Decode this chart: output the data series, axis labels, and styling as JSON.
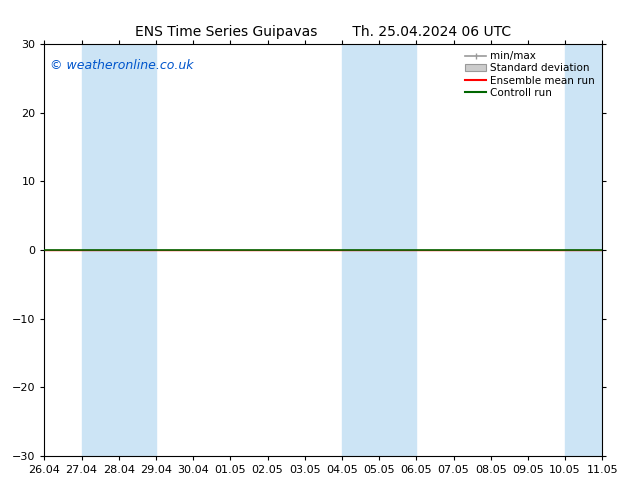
{
  "title": "ENS Time Series Guipavas",
  "title2": "Th. 25.04.2024 06 UTC",
  "watermark": "© weatheronline.co.uk",
  "watermark_color": "#0055cc",
  "ylim": [
    -30,
    30
  ],
  "yticks": [
    -30,
    -20,
    -10,
    0,
    10,
    20,
    30
  ],
  "xtick_labels": [
    "26.04",
    "27.04",
    "28.04",
    "29.04",
    "30.04",
    "01.05",
    "02.05",
    "03.05",
    "04.05",
    "05.05",
    "06.05",
    "07.05",
    "08.05",
    "09.05",
    "10.05",
    "11.05"
  ],
  "shaded_bands": [
    {
      "xmin": 1,
      "xmax": 3,
      "color": "#cce4f5",
      "alpha": 1.0
    },
    {
      "xmin": 8,
      "xmax": 10,
      "color": "#cce4f5",
      "alpha": 1.0
    },
    {
      "xmin": 14,
      "xmax": 15,
      "color": "#cce4f5",
      "alpha": 1.0
    }
  ],
  "control_run_color": "#006600",
  "ensemble_mean_color": "#ff0000",
  "minmax_color": "#999999",
  "std_dev_color": "#cccccc",
  "std_dev_edge": "#999999",
  "background_color": "#ffffff",
  "legend_entries": [
    "min/max",
    "Standard deviation",
    "Ensemble mean run",
    "Controll run"
  ],
  "title_fontsize": 10,
  "axis_fontsize": 8,
  "watermark_fontsize": 9
}
